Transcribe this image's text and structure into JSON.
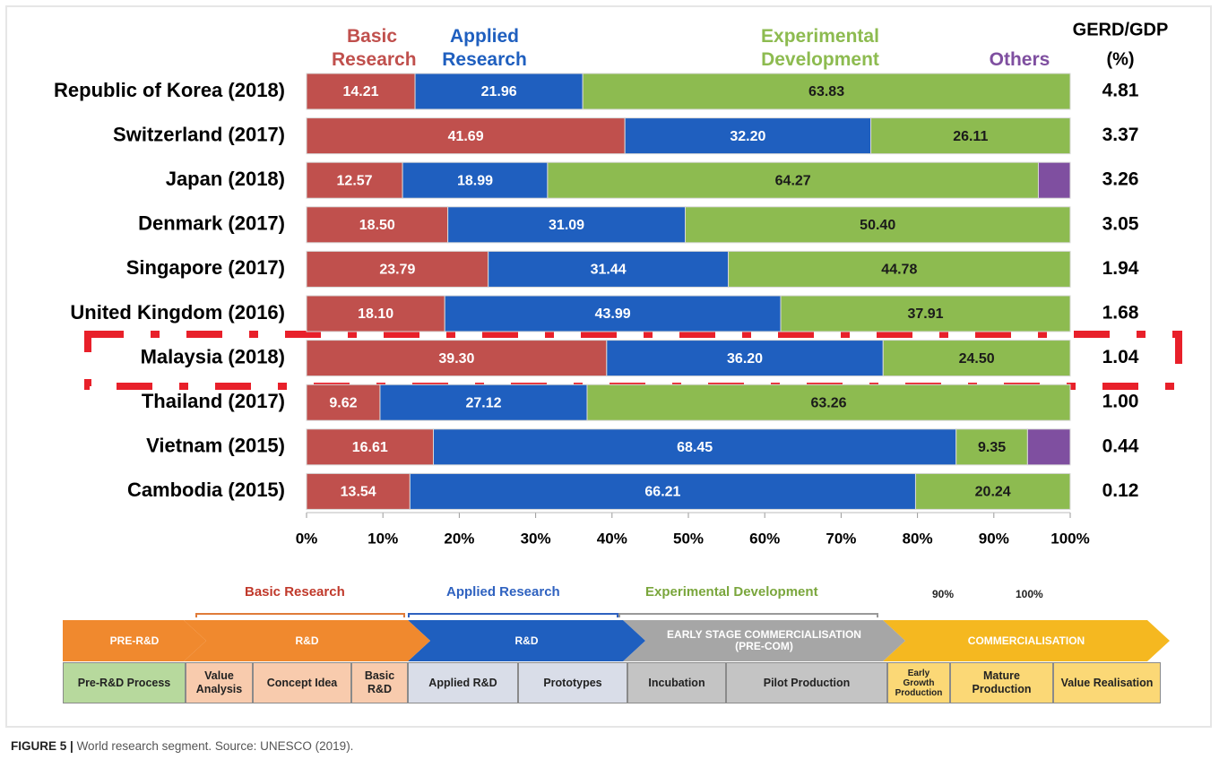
{
  "chart_data": {
    "type": "stacked-bar-horizontal",
    "categories": [
      "Republic of Korea (2018)",
      "Switzerland (2017)",
      "Japan (2018)",
      "Denmark (2017)",
      "Singapore (2017)",
      "United Kingdom (2016)",
      "Malaysia (2018)",
      "Thailand (2017)",
      "Vietnam (2015)",
      "Cambodia (2015)"
    ],
    "series": [
      {
        "name": "Basic Research",
        "color": "#c0504d",
        "label_color": "#ffffff",
        "values": [
          14.21,
          41.69,
          12.57,
          18.5,
          23.79,
          18.1,
          39.3,
          9.62,
          16.61,
          13.54
        ],
        "value_labels": [
          "14.21",
          "41.69",
          "12.57",
          "18.50",
          "23.79",
          "18.10",
          "39.30",
          "9.62",
          "16.61",
          "13.54"
        ]
      },
      {
        "name": "Applied Research",
        "color": "#1f5fbf",
        "label_color": "#ffffff",
        "values": [
          21.96,
          32.2,
          18.99,
          31.09,
          31.44,
          43.99,
          36.2,
          27.12,
          68.45,
          66.21
        ],
        "value_labels": [
          "21.96",
          "32.20",
          "18.99",
          "31.09",
          "31.44",
          "43.99",
          "36.20",
          "27.12",
          "68.45",
          "66.21"
        ]
      },
      {
        "name": "Experimental Development",
        "color": "#8dbb50",
        "label_color": "#1a1a1a",
        "values": [
          63.83,
          26.11,
          64.27,
          50.4,
          44.78,
          37.91,
          24.5,
          63.26,
          9.35,
          20.24
        ],
        "value_labels": [
          "63.83",
          "26.11",
          "64.27",
          "50.40",
          "44.78",
          "37.91",
          "24.50",
          "63.26",
          "9.35",
          "20.24"
        ]
      },
      {
        "name": "Others",
        "color": "#7f4fa0",
        "values": [
          0,
          0,
          4.17,
          0,
          0,
          0,
          0,
          0,
          5.59,
          0
        ]
      }
    ],
    "xlim": [
      0,
      100
    ],
    "xticks": [
      {
        "value": 0,
        "label": "0%"
      },
      {
        "value": 10,
        "label": "10%"
      },
      {
        "value": 20,
        "label": "20%"
      },
      {
        "value": 30,
        "label": "30%"
      },
      {
        "value": 40,
        "label": "40%"
      },
      {
        "value": 50,
        "label": "50%"
      },
      {
        "value": 60,
        "label": "60%"
      },
      {
        "value": 70,
        "label": "70%"
      },
      {
        "value": 80,
        "label": "80%"
      },
      {
        "value": 90,
        "label": "90%"
      },
      {
        "value": 100,
        "label": "100%"
      }
    ],
    "gerd_gdp": {
      "title": "GERD/GDP",
      "unit": "(%)",
      "values": [
        4.81,
        3.37,
        3.26,
        3.05,
        1.94,
        1.68,
        1.04,
        1.0,
        0.44,
        0.12
      ],
      "value_labels": [
        "4.81",
        "3.37",
        "3.26",
        "3.05",
        "1.94",
        "1.68",
        "1.04",
        "1.00",
        "0.44",
        "0.12"
      ]
    }
  },
  "diagram": {
    "stage_labels": [
      "Basic Research",
      "Applied Research",
      "Experimental Development",
      "90%",
      "100%"
    ],
    "phases": [
      "PRE-R&D",
      "R&D",
      "R&D",
      "EARLY STAGE COMMERCIALISATION (PRE-COM)",
      "COMMERCIALISATION"
    ],
    "steps": [
      "Pre-R&D Process",
      "Value Analysis",
      "Concept Idea",
      "Basic R&D",
      "Applied R&D",
      "Prototypes",
      "Incubation",
      "Pilot Production",
      "Early Growth Production",
      "Mature Production",
      "Value Realisation"
    ]
  },
  "caption": {
    "label": "FIGURE 5 |",
    "text": "World research segment. Source: UNESCO (2019)."
  }
}
